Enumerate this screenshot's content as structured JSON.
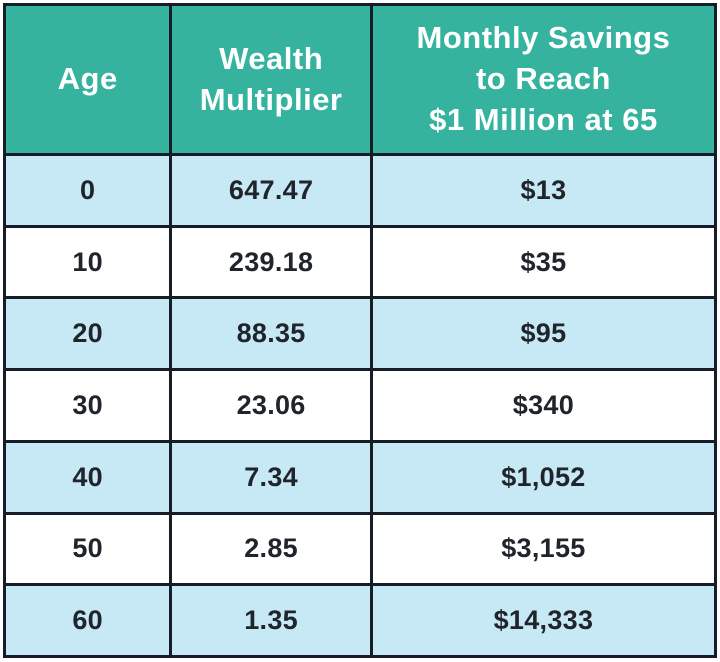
{
  "colors": {
    "header_bg": "#35B39E",
    "header_text": "#FFFFFF",
    "row_alt_bg": "#C7E9F6",
    "row_bg": "#FFFFFF",
    "border": "#161D26",
    "cell_text": "#20242B",
    "page_bg": "#FFFFFF"
  },
  "table": {
    "headers": [
      "Age",
      "Wealth\nMultiplier",
      "Monthly Savings\nto Reach\n$1 Million at 65"
    ],
    "rows": [
      [
        "0",
        "647.47",
        "$13"
      ],
      [
        "10",
        "239.18",
        "$35"
      ],
      [
        "20",
        "88.35",
        "$95"
      ],
      [
        "30",
        "23.06",
        "$340"
      ],
      [
        "40",
        "7.34",
        "$1,052"
      ],
      [
        "50",
        "2.85",
        "$3,155"
      ],
      [
        "60",
        "1.35",
        "$14,333"
      ]
    ]
  },
  "chart_data": {
    "type": "table",
    "title": "",
    "columns": [
      "Age",
      "Wealth Multiplier",
      "Monthly Savings to Reach $1 Million at 65"
    ],
    "rows": [
      [
        0,
        647.47,
        "$13"
      ],
      [
        10,
        239.18,
        "$35"
      ],
      [
        20,
        88.35,
        "$95"
      ],
      [
        30,
        23.06,
        "$340"
      ],
      [
        40,
        7.34,
        "$1,052"
      ],
      [
        50,
        2.85,
        "$3,155"
      ],
      [
        60,
        1.35,
        "$14,333"
      ]
    ],
    "layout": {
      "header_fill": "#35B39E",
      "alternating_row_fill": [
        "#C7E9F6",
        "#FFFFFF"
      ],
      "grid": "on"
    }
  }
}
